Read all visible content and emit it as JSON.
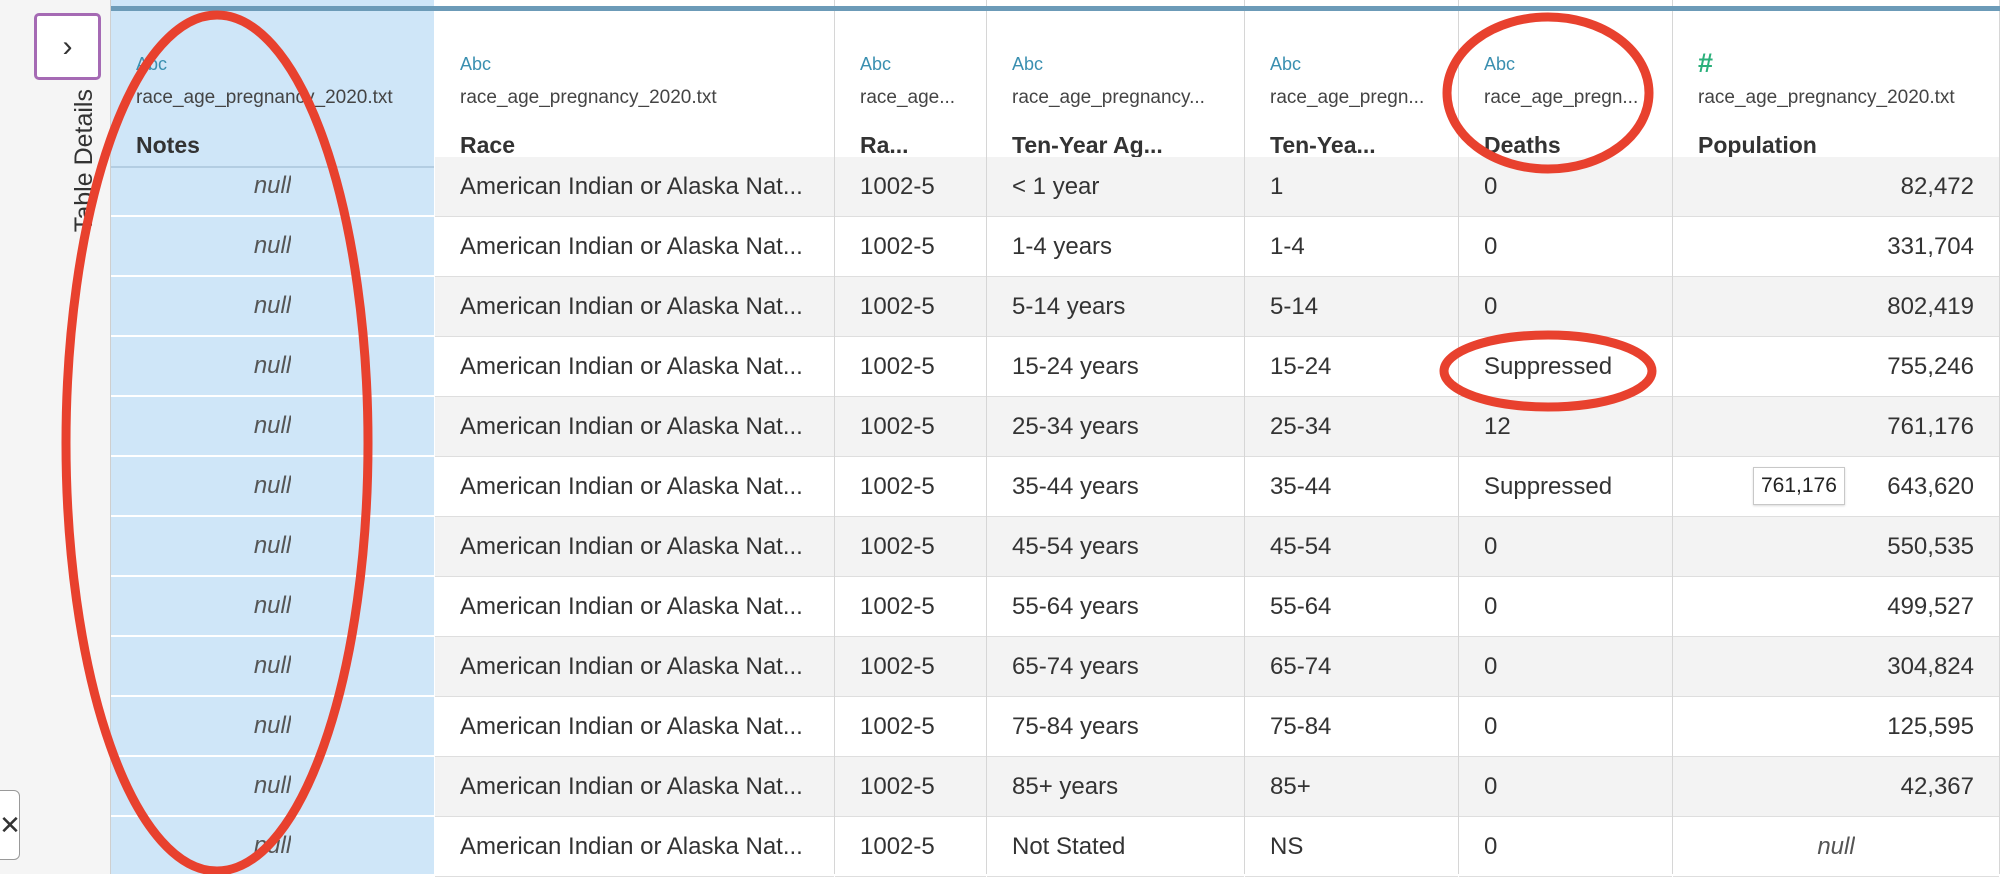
{
  "side_panel": {
    "label": "Table Details",
    "expand_icon": "chevron-right-icon",
    "close_icon": "close-icon"
  },
  "columns": [
    {
      "key": "notes",
      "type": "string",
      "type_label": "Abc",
      "source": "race_age_pregnancy_2020.txt",
      "name": "Notes",
      "selected": true,
      "align": "center"
    },
    {
      "key": "race",
      "type": "string",
      "type_label": "Abc",
      "source": "race_age_pregnancy_2020.txt",
      "name": "Race",
      "selected": false,
      "align": "left"
    },
    {
      "key": "race_code",
      "type": "string",
      "type_label": "Abc",
      "source": "race_age...",
      "name": "Ra...",
      "selected": false,
      "align": "left"
    },
    {
      "key": "ten_year_age_groups",
      "type": "string",
      "type_label": "Abc",
      "source": "race_age_pregnancy...",
      "name": "Ten-Year Ag...",
      "selected": false,
      "align": "left"
    },
    {
      "key": "ten_year_age_code",
      "type": "string",
      "type_label": "Abc",
      "source": "race_age_pregn...",
      "name": "Ten-Yea...",
      "selected": false,
      "align": "left"
    },
    {
      "key": "deaths",
      "type": "string",
      "type_label": "Abc",
      "source": "race_age_pregn...",
      "name": "Deaths",
      "selected": false,
      "align": "left"
    },
    {
      "key": "population",
      "type": "number",
      "type_label": "#",
      "source": "race_age_pregnancy_2020.txt",
      "name": "Population",
      "selected": false,
      "align": "right"
    }
  ],
  "rows": [
    [
      "null",
      "American Indian or Alaska Nat...",
      "1002-5",
      "< 1 year",
      "1",
      "0",
      "82,472"
    ],
    [
      "null",
      "American Indian or Alaska Nat...",
      "1002-5",
      "1-4 years",
      "1-4",
      "0",
      "331,704"
    ],
    [
      "null",
      "American Indian or Alaska Nat...",
      "1002-5",
      "5-14 years",
      "5-14",
      "0",
      "802,419"
    ],
    [
      "null",
      "American Indian or Alaska Nat...",
      "1002-5",
      "15-24 years",
      "15-24",
      "Suppressed",
      "755,246"
    ],
    [
      "null",
      "American Indian or Alaska Nat...",
      "1002-5",
      "25-34 years",
      "25-34",
      "12",
      "761,176"
    ],
    [
      "null",
      "American Indian or Alaska Nat...",
      "1002-5",
      "35-44 years",
      "35-44",
      "Suppressed",
      "643,620"
    ],
    [
      "null",
      "American Indian or Alaska Nat...",
      "1002-5",
      "45-54 years",
      "45-54",
      "0",
      "550,535"
    ],
    [
      "null",
      "American Indian or Alaska Nat...",
      "1002-5",
      "55-64 years",
      "55-64",
      "0",
      "499,527"
    ],
    [
      "null",
      "American Indian or Alaska Nat...",
      "1002-5",
      "65-74 years",
      "65-74",
      "0",
      "304,824"
    ],
    [
      "null",
      "American Indian or Alaska Nat...",
      "1002-5",
      "75-84 years",
      "75-84",
      "0",
      "125,595"
    ],
    [
      "null",
      "American Indian or Alaska Nat...",
      "1002-5",
      "85+ years",
      "85+",
      "0",
      "42,367"
    ],
    [
      "null",
      "American Indian or Alaska Nat...",
      "1002-5",
      "Not Stated",
      "NS",
      "0",
      "null"
    ]
  ],
  "tooltip": {
    "text": "761,176"
  },
  "colors": {
    "selected_column": "#cfe6f8",
    "annotation": "#e8412e",
    "header_accent": "#6c9bb8",
    "string_icon": "#3a8fb0",
    "number_icon": "#2bb07b",
    "panel_button_border": "#a56ab4"
  }
}
